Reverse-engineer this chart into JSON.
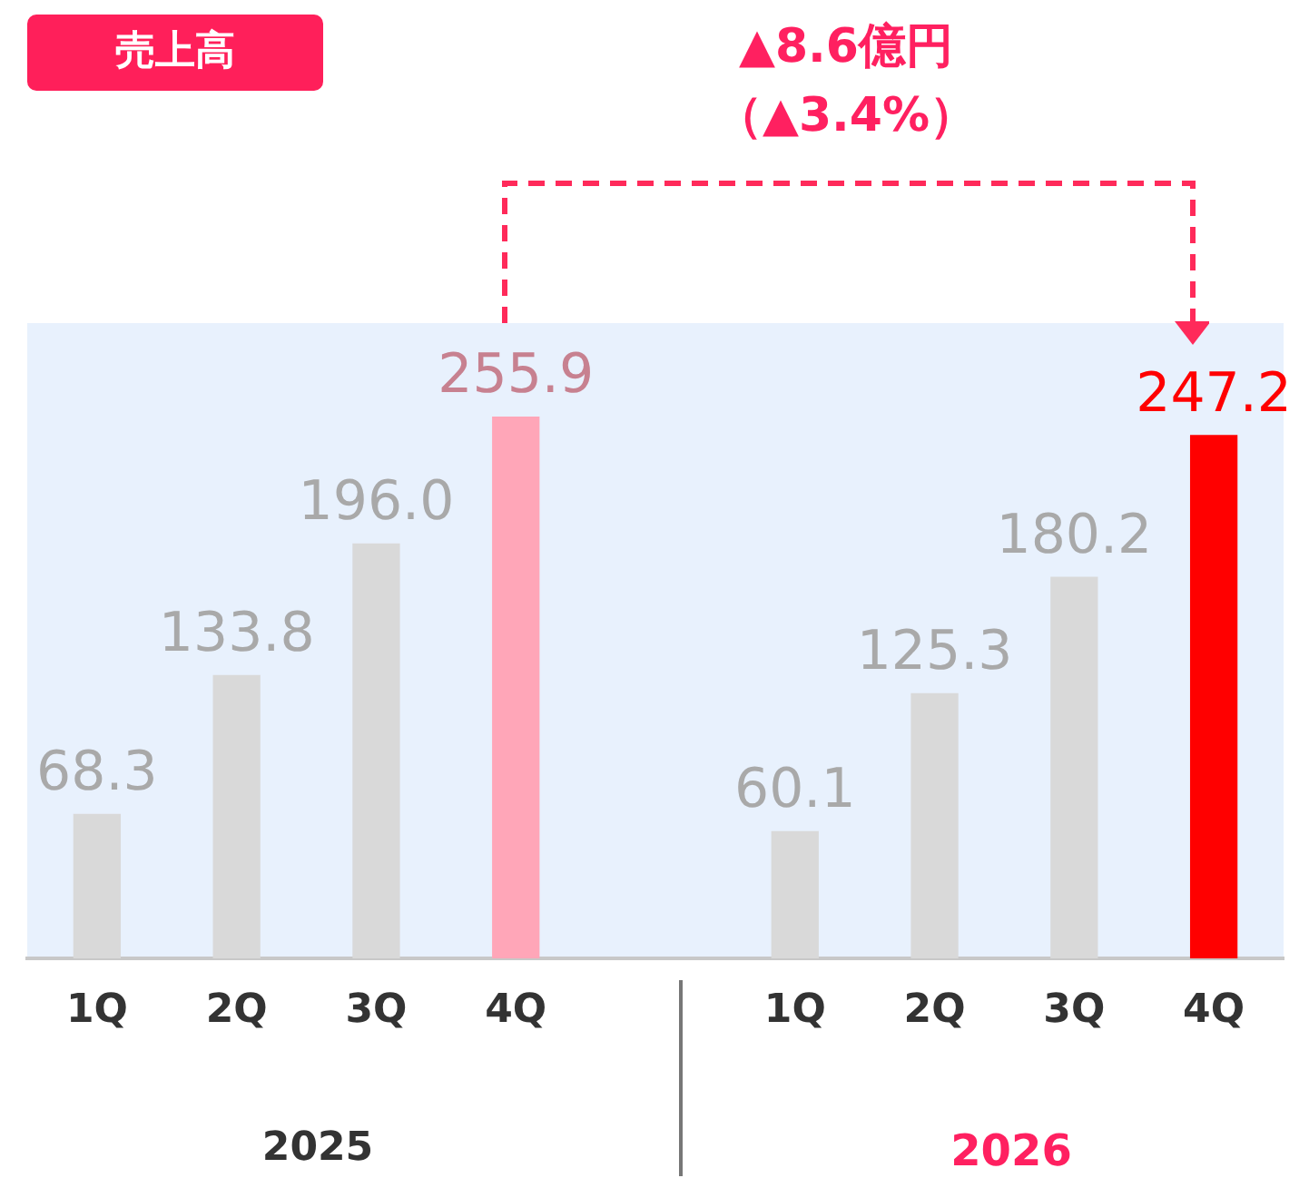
{
  "chart_data": {
    "type": "bar",
    "title": "売上高",
    "categories": [
      "1Q",
      "2Q",
      "3Q",
      "4Q",
      null,
      "1Q",
      "2Q",
      "3Q",
      "4Q"
    ],
    "values": [
      68.3,
      133.8,
      196.0,
      255.9,
      null,
      60.1,
      125.3,
      180.2,
      247.2
    ],
    "value_labels": [
      "68.3",
      "133.8",
      "196.0",
      "255.9",
      null,
      "60.1",
      "125.3",
      "180.2",
      "247.2"
    ],
    "colors": [
      "#d9d9d9",
      "#d9d9d9",
      "#d9d9d9",
      "#ffa6b8",
      "#d9d9d9",
      "#d9d9d9",
      "#d9d9d9",
      "#d9d9d9",
      "#ff0000"
    ],
    "annotations": [
      "▲8.6億円",
      "（▲3.4%）",
      "2025",
      "2026"
    ],
    "grid": false,
    "legend": false
  }
}
